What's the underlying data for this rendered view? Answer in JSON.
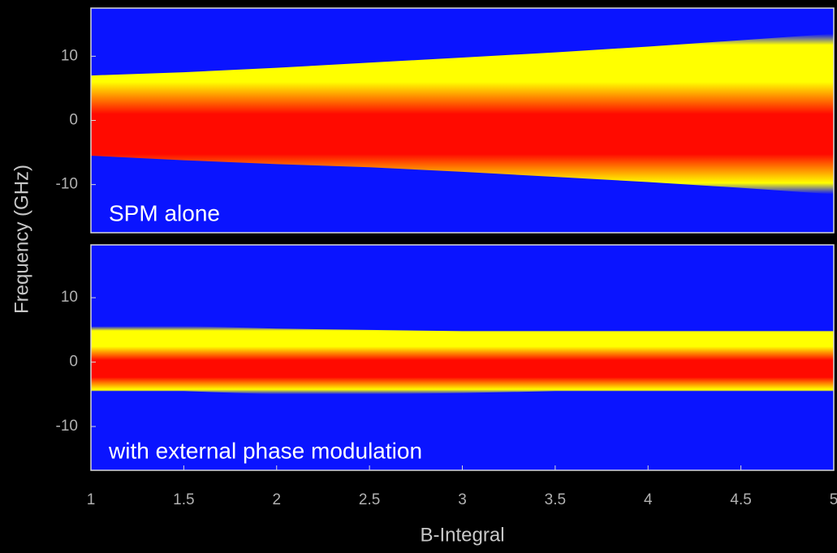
{
  "chart_data": [
    {
      "type": "band",
      "annotation": "SPM alone",
      "ylabel": "Frequency (GHz)",
      "background": "#0a14ff",
      "colors": [
        "#ffff00",
        "#ff0a00"
      ],
      "x": [
        1,
        1.5,
        2,
        2.5,
        3,
        3.5,
        4,
        4.5,
        5
      ],
      "upper": [
        7,
        7.5,
        8.2,
        9,
        9.8,
        10.6,
        11.5,
        12.5,
        13.5
      ],
      "lower": [
        -5.5,
        -6.2,
        -6.8,
        -7.3,
        -8,
        -8.8,
        -9.6,
        -10.5,
        -11.5
      ],
      "xlim": [
        1,
        5
      ],
      "ylim": [
        -17.5,
        17.5
      ],
      "yticks": [
        -10,
        0,
        10
      ]
    },
    {
      "type": "band",
      "annotation": "with external phase modulation",
      "xlabel": "B-Integral",
      "background": "#0a14ff",
      "colors": [
        "#ffff00",
        "#ff0a00"
      ],
      "x": [
        1,
        1.5,
        2,
        2.5,
        3,
        3.5,
        4,
        4.5,
        5
      ],
      "upper": [
        5.5,
        5.6,
        5.2,
        5,
        4.8,
        4.8,
        4.8,
        4.8,
        4.8
      ],
      "lower": [
        -4.5,
        -4.5,
        -5,
        -5,
        -4.8,
        -4.5,
        -4.5,
        -4.5,
        -4.5
      ],
      "xlim": [
        1,
        5
      ],
      "ylim": [
        -16.8,
        18.2
      ],
      "yticks": [
        -10,
        0,
        10
      ],
      "xticks": [
        1,
        1.5,
        2,
        2.5,
        3,
        3.5,
        4,
        4.5,
        5
      ]
    }
  ]
}
